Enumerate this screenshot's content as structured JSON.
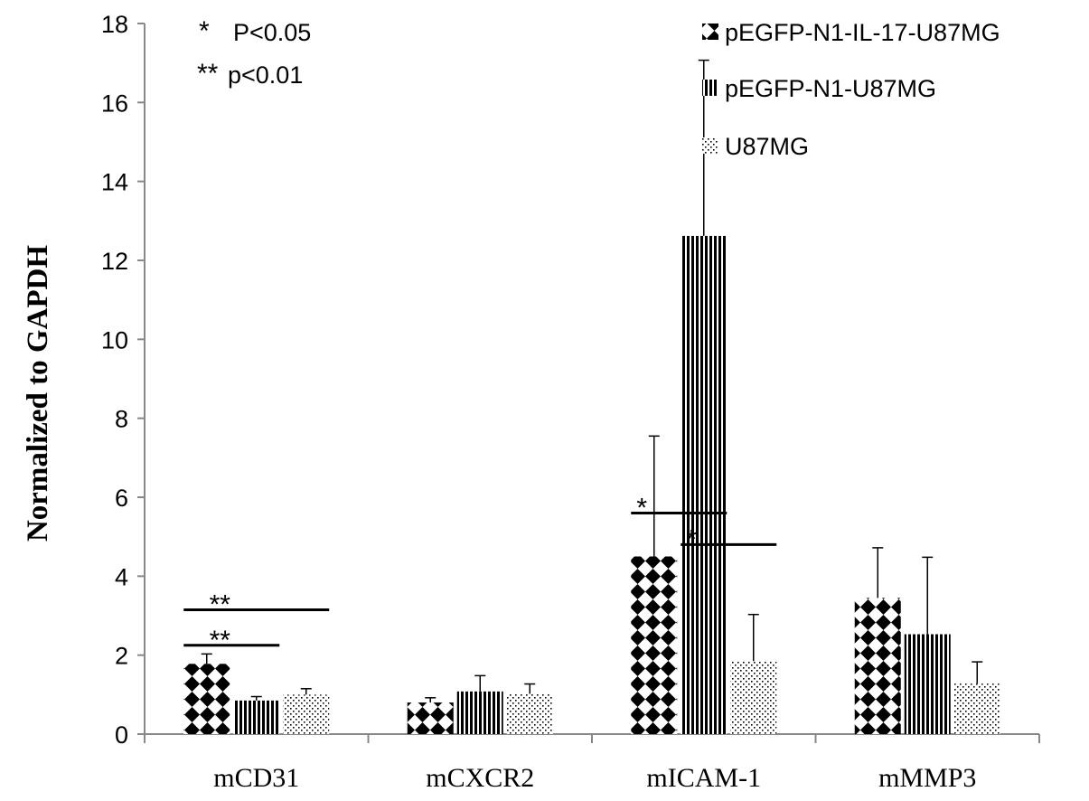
{
  "chart_data": {
    "type": "bar",
    "title": "",
    "xlabel": "",
    "ylabel": "Normalized to GAPDH",
    "ylim": [
      0,
      18
    ],
    "yticks": [
      "0",
      "2",
      "4",
      "6",
      "8",
      "10",
      "12",
      "14",
      "16",
      "18"
    ],
    "categories": [
      "mCD31",
      "mCXCR2",
      "mICAM-1",
      "mMMP3"
    ],
    "series": [
      {
        "name": "pEGFP-N1-IL-17-U87MG",
        "pattern": "diamond",
        "values": [
          1.78,
          0.8,
          4.5,
          3.45
        ],
        "errors": [
          0.25,
          0.12,
          3.05,
          1.27
        ]
      },
      {
        "name": "pEGFP-N1-U87MG",
        "pattern": "vertical",
        "values": [
          0.85,
          1.08,
          12.62,
          2.53
        ],
        "errors": [
          0.1,
          0.4,
          4.45,
          1.95
        ]
      },
      {
        "name": "U87MG",
        "pattern": "dots",
        "values": [
          1.0,
          1.02,
          1.85,
          1.28
        ],
        "errors": [
          0.15,
          0.25,
          1.18,
          0.55
        ]
      }
    ],
    "legend_position": "top-right",
    "significance_legend": [
      {
        "symbol": "*",
        "text": "P<0.05"
      },
      {
        "symbol": "**",
        "text": "p<0.01"
      }
    ],
    "annotations": [
      {
        "category_index": 0,
        "from_series": 0,
        "to_series": 1,
        "level": 2.25,
        "label": "**"
      },
      {
        "category_index": 0,
        "from_series": 0,
        "to_series": 2,
        "level": 3.15,
        "label": "**"
      },
      {
        "category_index": 2,
        "from_series": 0,
        "to_series": 1,
        "level": 5.6,
        "label": "*"
      },
      {
        "category_index": 2,
        "from_series": 1,
        "to_series": 2,
        "level": 4.8,
        "label": "*"
      }
    ],
    "colors": {
      "ink": "#000000",
      "axis": "#888888",
      "background": "#ffffff"
    }
  }
}
